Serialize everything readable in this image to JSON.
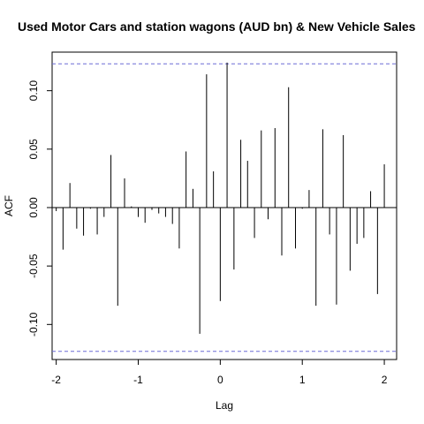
{
  "chart_data": {
    "type": "bar",
    "title": "Used Motor Cars and station wagons (AUD bn) & New Vehicle Sales",
    "xlabel": "Lag",
    "ylabel": "ACF",
    "xlim": [
      -2.05,
      2.15
    ],
    "ylim": [
      -0.13,
      0.133
    ],
    "x_ticks": [
      -2,
      -1,
      0,
      1,
      2
    ],
    "x_tick_labels": [
      "-2",
      "-1",
      "0",
      "1",
      "2"
    ],
    "y_ticks": [
      -0.1,
      -0.05,
      0.0,
      0.05,
      0.1
    ],
    "y_tick_labels": [
      "-0.10",
      "-0.05",
      "0.00",
      "0.05",
      "0.10"
    ],
    "conf_limit": 0.123,
    "conf_line_color": "#6b6bd6",
    "bar_color": "#000000",
    "series": [
      {
        "x": [
          -2.0,
          -1.917,
          -1.833,
          -1.75,
          -1.667,
          -1.583,
          -1.5,
          -1.417,
          -1.333,
          -1.25,
          -1.167,
          -1.083,
          -1.0,
          -0.917,
          -0.833,
          -0.75,
          -0.667,
          -0.583,
          -0.5,
          -0.417,
          -0.333,
          -0.25,
          -0.167,
          -0.083,
          0.0,
          0.083,
          0.167,
          0.25,
          0.333,
          0.417,
          0.5,
          0.583,
          0.667,
          0.75,
          0.833,
          0.917,
          1.0,
          1.083,
          1.167,
          1.25,
          1.333,
          1.417,
          1.5,
          1.583,
          1.667,
          1.75,
          1.833,
          1.917,
          2.0
        ],
        "values": [
          -0.003,
          -0.036,
          0.021,
          -0.018,
          -0.024,
          -0.001,
          -0.023,
          -0.008,
          0.045,
          -0.084,
          0.025,
          0.001,
          -0.008,
          -0.013,
          -0.002,
          -0.005,
          -0.008,
          -0.014,
          -0.035,
          0.048,
          0.016,
          -0.108,
          0.114,
          0.031,
          -0.08,
          0.124,
          -0.053,
          0.058,
          0.04,
          -0.026,
          0.066,
          -0.01,
          0.068,
          -0.041,
          0.103,
          -0.035,
          -0.001,
          0.015,
          -0.084,
          0.067,
          -0.023,
          -0.083,
          0.062,
          -0.054,
          -0.031,
          -0.026,
          0.014,
          -0.074,
          0.037
        ]
      }
    ]
  }
}
